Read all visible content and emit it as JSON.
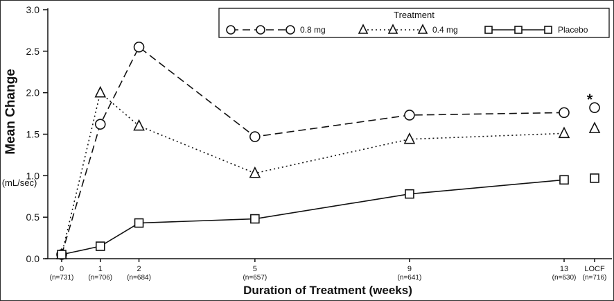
{
  "chart_data": {
    "type": "line",
    "title": "",
    "xlabel": "Duration of Treatment (weeks)",
    "ylabel": "Mean Change",
    "ylabel_unit": "(mL/sec)",
    "ylim": [
      0,
      3
    ],
    "yticks": [
      0,
      0.5,
      1,
      1.5,
      2,
      2.5,
      3
    ],
    "x": [
      0,
      1,
      2,
      5,
      9,
      13
    ],
    "x_tick_labels": [
      "0",
      "1",
      "2",
      "5",
      "9",
      "13"
    ],
    "x_n_labels": [
      "(n=731)",
      "(n=706)",
      "(n=684)",
      "(n=657)",
      "(n=641)",
      "(n=630)"
    ],
    "locf": {
      "label": "LOCF",
      "n_label": "(n=716)"
    },
    "legend": {
      "title": "Treatment",
      "position": "top-center"
    },
    "grid": false,
    "colors": {
      "stroke": "#111111",
      "background": "#ffffff"
    },
    "series": [
      {
        "name": "0.8 mg",
        "marker": "circle",
        "line_style": "dashed",
        "values": [
          0.05,
          1.62,
          2.55,
          1.47,
          1.73,
          1.76
        ],
        "locf_value": 1.82,
        "locf_annotation": "*"
      },
      {
        "name": "0.4 mg",
        "marker": "triangle",
        "line_style": "dotted",
        "values": [
          0.05,
          2.0,
          1.6,
          1.03,
          1.44,
          1.51
        ],
        "locf_value": 1.57,
        "locf_annotation": ""
      },
      {
        "name": "Placebo",
        "marker": "square",
        "line_style": "solid",
        "values": [
          0.05,
          0.15,
          0.43,
          0.48,
          0.78,
          0.95
        ],
        "locf_value": 0.97,
        "locf_annotation": ""
      }
    ]
  }
}
